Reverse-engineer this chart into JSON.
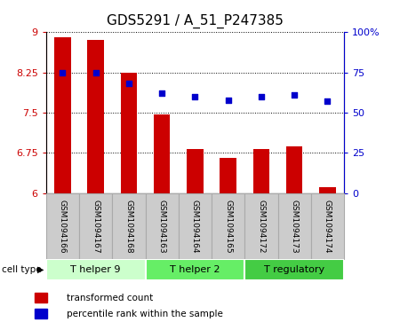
{
  "title": "GDS5291 / A_51_P247385",
  "samples": [
    "GSM1094166",
    "GSM1094167",
    "GSM1094168",
    "GSM1094163",
    "GSM1094164",
    "GSM1094165",
    "GSM1094172",
    "GSM1094173",
    "GSM1094174"
  ],
  "transformed_counts": [
    8.9,
    8.85,
    8.25,
    7.47,
    6.82,
    6.65,
    6.82,
    6.87,
    6.12
  ],
  "percentile_ranks": [
    75,
    75,
    68,
    62,
    60,
    58,
    60,
    61,
    57
  ],
  "bar_color": "#cc0000",
  "dot_color": "#0000cc",
  "ylim_left": [
    6,
    9
  ],
  "ylim_right": [
    0,
    100
  ],
  "yticks_left": [
    6,
    6.75,
    7.5,
    8.25,
    9
  ],
  "yticks_right": [
    0,
    25,
    50,
    75,
    100
  ],
  "ytick_labels_left": [
    "6",
    "6.75",
    "7.5",
    "8.25",
    "9"
  ],
  "ytick_labels_right": [
    "0",
    "25",
    "50",
    "75",
    "100%"
  ],
  "cell_groups": [
    {
      "label": "T helper 9",
      "start": 0,
      "end": 3,
      "color": "#ccffcc"
    },
    {
      "label": "T helper 2",
      "start": 3,
      "end": 6,
      "color": "#66ee66"
    },
    {
      "label": "T regulatory",
      "start": 6,
      "end": 9,
      "color": "#44cc44"
    }
  ],
  "cell_type_label": "cell type",
  "legend_items": [
    {
      "label": "transformed count",
      "color": "#cc0000"
    },
    {
      "label": "percentile rank within the sample",
      "color": "#0000cc"
    }
  ],
  "background_color": "#ffffff",
  "grid_color": "#000000",
  "tick_label_color_left": "#cc0000",
  "tick_label_color_right": "#0000cc",
  "title_fontsize": 11,
  "sample_box_color": "#cccccc",
  "sample_box_edge": "#aaaaaa"
}
